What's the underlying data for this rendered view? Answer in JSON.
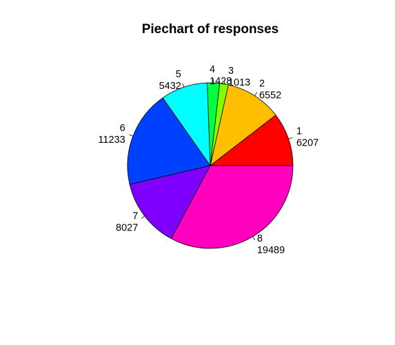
{
  "chart_data": {
    "type": "pie",
    "title": "Piechart of responses",
    "start": "3 o'clock",
    "direction": "counter-clockwise",
    "slices": [
      {
        "label": "1",
        "value": 6207,
        "value_text": "6207",
        "color": "#FF0000"
      },
      {
        "label": "2",
        "value": 6552,
        "value_text": "6552",
        "color": "#FFBF00"
      },
      {
        "label": "3",
        "value": 1013,
        "value_text": "1013",
        "color": "#80FF00"
      },
      {
        "label": "4",
        "value": 1428,
        "value_text": "1428",
        "color": "#00FF40"
      },
      {
        "label": "5",
        "value": 5432,
        "value_text": "5432",
        "color": "#00FFFF"
      },
      {
        "label": "6",
        "value": 11233,
        "value_text": "11233",
        "color": "#0040FF"
      },
      {
        "label": "7",
        "value": 8027,
        "value_text": "8027",
        "color": "#8000FF"
      },
      {
        "label": "8",
        "value": 19489,
        "value_text": "19489",
        "color": "#FF00BF"
      }
    ]
  }
}
